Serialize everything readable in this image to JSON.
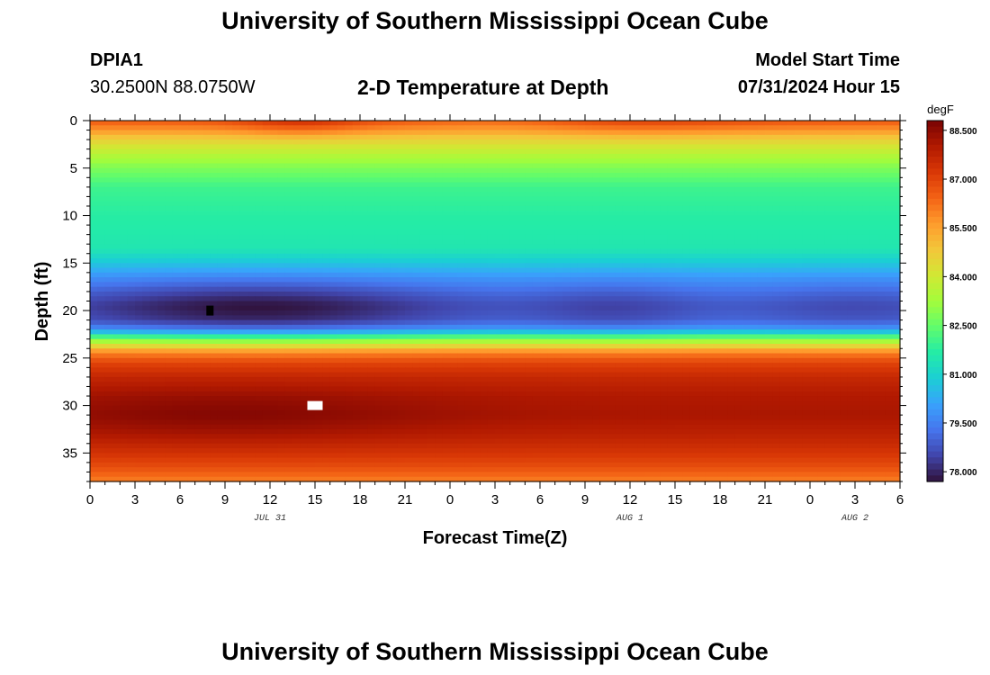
{
  "header": {
    "title": "University of Southern Mississippi Ocean Cube",
    "station_id": "DPIA1",
    "coords": "30.2500N  88.0750W",
    "plot_title": "2-D Temperature at Depth",
    "model_label": "Model Start Time",
    "model_time": "07/31/2024 Hour 15"
  },
  "footer": {
    "title": "University of Southern Mississippi Ocean Cube"
  },
  "chart_data": {
    "type": "heatmap",
    "title": "2-D Temperature at Depth",
    "xlabel": "Forecast Time(Z)",
    "ylabel": "Depth (ft)",
    "x_tick_labels": [
      "0",
      "3",
      "6",
      "9",
      "12",
      "15",
      "18",
      "21",
      "0",
      "3",
      "6",
      "9",
      "12",
      "15",
      "18",
      "21",
      "0",
      "3",
      "6"
    ],
    "x_range_hours": [
      0,
      54
    ],
    "date_labels": [
      {
        "text": "JUL 31",
        "hour": 12
      },
      {
        "text": "AUG 1",
        "hour": 36
      },
      {
        "text": "AUG 2",
        "hour": 51
      }
    ],
    "y_ticks": [
      0,
      5,
      10,
      15,
      20,
      25,
      30,
      35
    ],
    "ylim": [
      0,
      38
    ],
    "y_inverted": true,
    "colorbar": {
      "unit": "degF",
      "ticks": [
        "88.500",
        "87.000",
        "85.500",
        "84.000",
        "82.500",
        "81.000",
        "79.500",
        "78.000"
      ],
      "range": [
        77.7,
        88.8
      ],
      "colors": [
        "#30123b",
        "#4145ab",
        "#4675ed",
        "#39a2fc",
        "#1bcfd4",
        "#24eca6",
        "#61fc6c",
        "#a4fc3b",
        "#d1e834",
        "#f3c63a",
        "#fe9b2d",
        "#f36315",
        "#d93806",
        "#b11901",
        "#7a0403"
      ]
    },
    "depth_profile_deg_f": [
      {
        "depth": 0.0,
        "temp": 86.6
      },
      {
        "depth": 1.0,
        "temp": 85.7
      },
      {
        "depth": 2.0,
        "temp": 84.6
      },
      {
        "depth": 3.5,
        "temp": 83.6
      },
      {
        "depth": 5.0,
        "temp": 82.8
      },
      {
        "depth": 7.0,
        "temp": 82.0
      },
      {
        "depth": 10.0,
        "temp": 81.7
      },
      {
        "depth": 13.5,
        "temp": 81.5
      },
      {
        "depth": 15.0,
        "temp": 80.8
      },
      {
        "depth": 16.5,
        "temp": 80.0
      },
      {
        "depth": 18.0,
        "temp": 79.4
      },
      {
        "depth": 19.5,
        "temp": 79.0
      },
      {
        "depth": 21.0,
        "temp": 79.2
      },
      {
        "depth": 22.0,
        "temp": 80.2
      },
      {
        "depth": 22.8,
        "temp": 82.5
      },
      {
        "depth": 23.6,
        "temp": 84.3
      },
      {
        "depth": 24.4,
        "temp": 86.0
      },
      {
        "depth": 25.5,
        "temp": 87.0
      },
      {
        "depth": 27.0,
        "temp": 87.6
      },
      {
        "depth": 29.0,
        "temp": 88.0
      },
      {
        "depth": 31.0,
        "temp": 88.1
      },
      {
        "depth": 33.0,
        "temp": 87.8
      },
      {
        "depth": 35.0,
        "temp": 87.3
      },
      {
        "depth": 36.5,
        "temp": 86.8
      },
      {
        "depth": 38.0,
        "temp": 86.0
      }
    ],
    "cold_core_anomaly": {
      "depth_center": 19.8,
      "depth_sigma": 2.3,
      "peaks": [
        {
          "hour": 11,
          "width_hours": 9,
          "delta": -1.3
        },
        {
          "hour": 35,
          "width_hours": 4,
          "delta": -0.55
        },
        {
          "hour": 51,
          "width_hours": 5,
          "delta": -0.45
        }
      ],
      "weak_near_hour": 18
    },
    "warm_core_anomaly": {
      "depth_center": 31.0,
      "depth_sigma": 2.2,
      "peaks": [
        {
          "hour": 9,
          "width_hours": 10,
          "delta": 0.55
        }
      ]
    },
    "surface_anomaly": {
      "peaks": [
        {
          "hour": 14,
          "width_hours": 3,
          "delta": 0.9
        },
        {
          "hour": 28,
          "width_hours": 4,
          "delta": -0.4
        },
        {
          "hour": 36,
          "width_hours": 6,
          "delta": 0.5
        }
      ]
    },
    "markers": [
      {
        "name": "black-marker",
        "hour": 8,
        "depth": 20,
        "color": "#000000"
      },
      {
        "name": "white-marker",
        "hour": 15,
        "depth": 30,
        "color": "#ffffff"
      }
    ]
  }
}
